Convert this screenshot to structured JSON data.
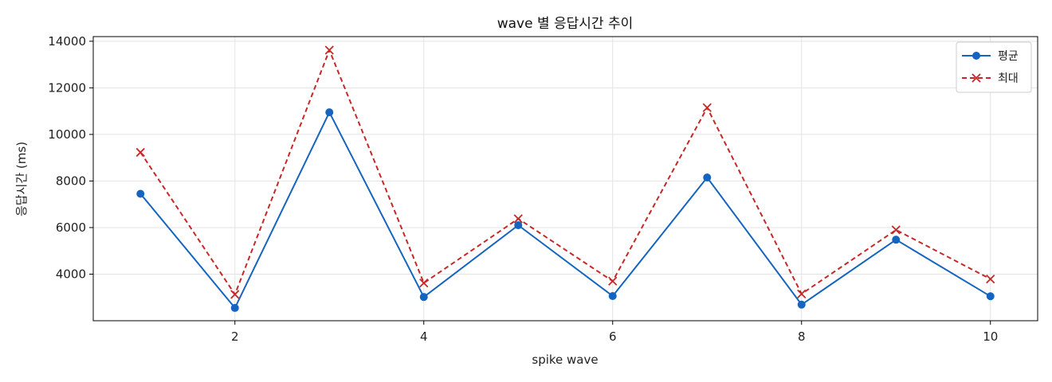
{
  "chart_data": {
    "type": "line",
    "title": "wave 별 응답시간 추이",
    "xlabel": "spike wave",
    "ylabel": "응답시간 (ms)",
    "xlim": [
      0.5,
      10.5
    ],
    "ylim": [
      2000,
      14200
    ],
    "x_ticks": [
      2,
      4,
      6,
      8,
      10
    ],
    "y_ticks": [
      4000,
      6000,
      8000,
      10000,
      12000,
      14000
    ],
    "grid": true,
    "legend_position": "top-right",
    "x": [
      1,
      2,
      3,
      4,
      5,
      6,
      7,
      8,
      9,
      10
    ],
    "series": [
      {
        "name": "평균",
        "color": "#1565c0",
        "marker": "circle",
        "line_style": "solid",
        "values": [
          7450,
          2550,
          10950,
          3020,
          6100,
          3060,
          8150,
          2690,
          5480,
          3050
        ]
      },
      {
        "name": "최대",
        "color": "#c62828",
        "marker": "x",
        "line_style": "dashed",
        "values": [
          9230,
          3130,
          13620,
          3620,
          6380,
          3700,
          11150,
          3150,
          5900,
          3790
        ]
      }
    ]
  }
}
